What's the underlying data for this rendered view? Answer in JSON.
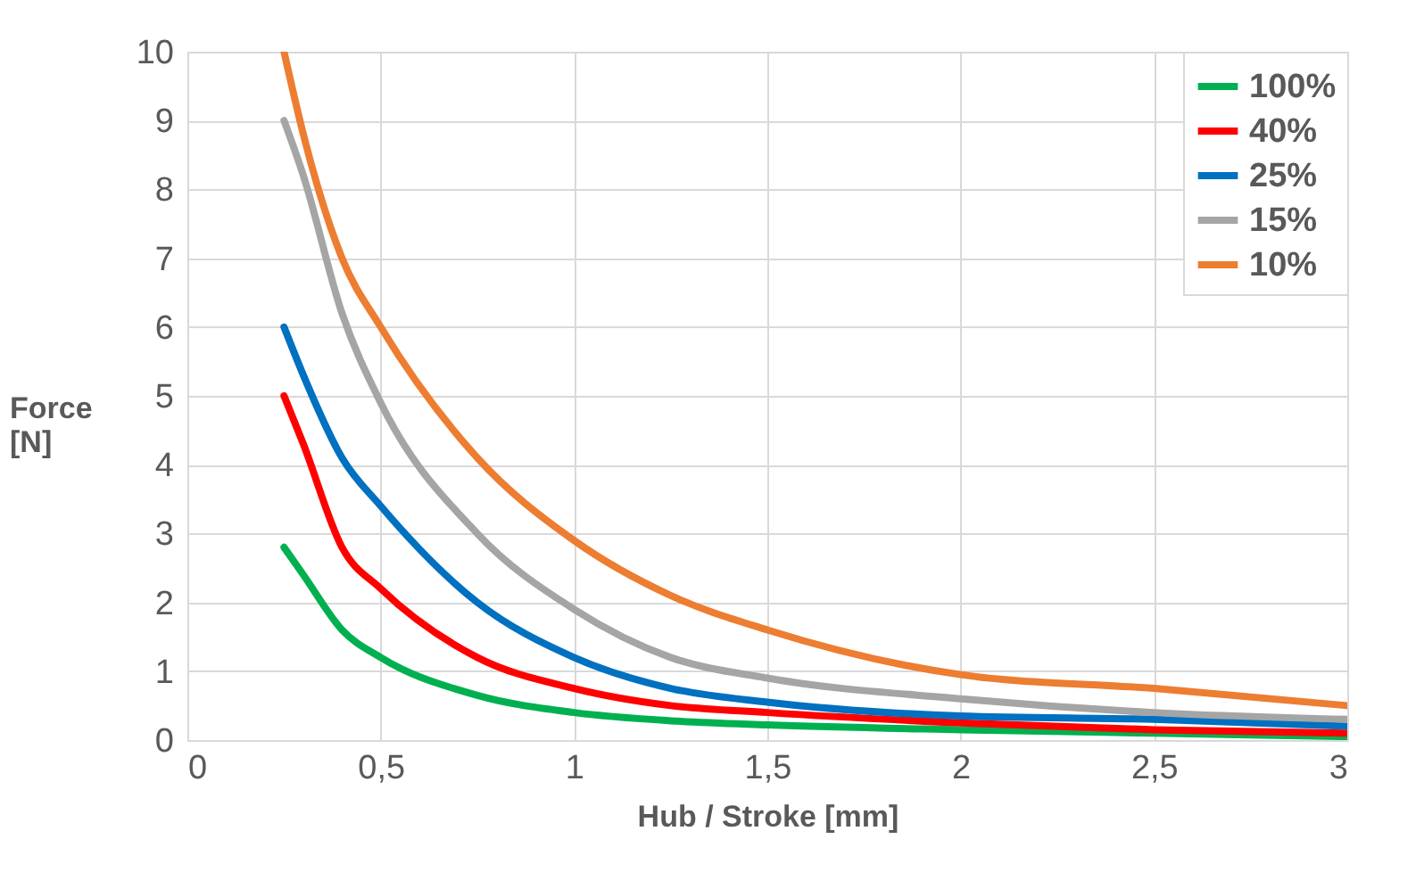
{
  "chart_data": {
    "type": "line",
    "xlabel": "Hub / Stroke [mm]",
    "ylabel": "Force [N]",
    "x": [
      0.25,
      0.3,
      0.4,
      0.5,
      0.75,
      1,
      1.25,
      1.5,
      2,
      2.5,
      3
    ],
    "series": [
      {
        "name": "100%",
        "color": "#00b050",
        "values": [
          2.8,
          2.4,
          1.6,
          1.2,
          0.65,
          0.4,
          0.28,
          0.22,
          0.15,
          0.1,
          0.05
        ]
      },
      {
        "name": "40%",
        "color": "#ff0000",
        "values": [
          5,
          4.3,
          2.8,
          2.2,
          1.2,
          0.75,
          0.5,
          0.4,
          0.25,
          0.15,
          0.1
        ]
      },
      {
        "name": "25%",
        "color": "#0070c0",
        "values": [
          6,
          5.3,
          4.1,
          3.4,
          2.0,
          1.2,
          0.75,
          0.55,
          0.35,
          0.3,
          0.2
        ]
      },
      {
        "name": "15%",
        "color": "#a5a5a5",
        "values": [
          9,
          8.2,
          6.2,
          4.9,
          3.0,
          1.9,
          1.2,
          0.9,
          0.6,
          0.4,
          0.3
        ]
      },
      {
        "name": "10%",
        "color": "#ed7d31",
        "values": [
          10,
          8.8,
          7,
          6.0,
          4.1,
          2.9,
          2.1,
          1.6,
          0.95,
          0.75,
          0.5
        ]
      }
    ],
    "xlim": [
      0,
      3
    ],
    "xticks": [
      0,
      {
        "value": 0.5,
        "label": "0,5"
      },
      1,
      {
        "value": 1.5,
        "label": "1,5"
      },
      2,
      {
        "value": 2.5,
        "label": "2,5"
      },
      3
    ],
    "ylim": [
      0,
      10
    ],
    "yticks": [
      0,
      1,
      2,
      3,
      4,
      5,
      6,
      7,
      8,
      9,
      10
    ],
    "grid": true,
    "legend": "top right",
    "marker": "none",
    "line_style": "solid"
  }
}
